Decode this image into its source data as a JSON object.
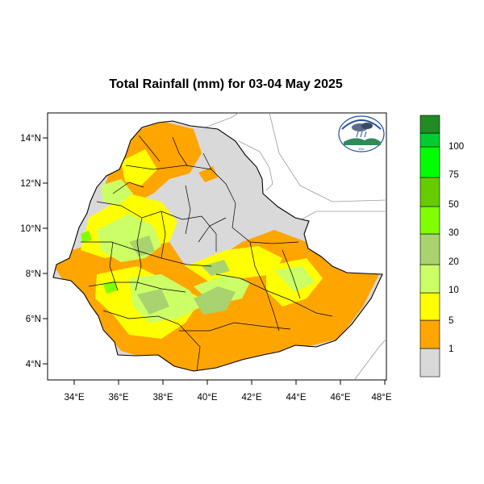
{
  "title": "Total Rainfall (mm) for 03-04 May 2025",
  "map": {
    "x_ticks": [
      "34°E",
      "36°E",
      "38°E",
      "40°E",
      "42°E",
      "44°E",
      "46°E",
      "48°E"
    ],
    "y_ticks": [
      "14°N",
      "12°N",
      "10°N",
      "8°N",
      "6°N",
      "4°N"
    ],
    "logo_icon": "ethiopian-meteorology-institute-logo-icon",
    "logo_caption": "EMI"
  },
  "legend": {
    "labels": [
      "1",
      "5",
      "10",
      "20",
      "30",
      "50",
      "75",
      "100"
    ],
    "colors": [
      "#d9d9d9",
      "#ffa500",
      "#ffff00",
      "#ccff66",
      "#a8d36e",
      "#7fff00",
      "#66cc00",
      "#00ff00",
      "#00cc33",
      "#228b22"
    ]
  }
}
